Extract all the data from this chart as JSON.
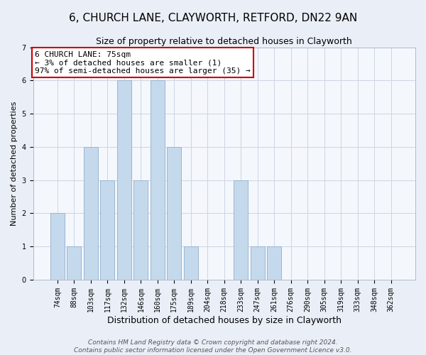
{
  "title1": "6, CHURCH LANE, CLAYWORTH, RETFORD, DN22 9AN",
  "title2": "Size of property relative to detached houses in Clayworth",
  "xlabel": "Distribution of detached houses by size in Clayworth",
  "ylabel": "Number of detached properties",
  "categories": [
    "74sqm",
    "88sqm",
    "103sqm",
    "117sqm",
    "132sqm",
    "146sqm",
    "160sqm",
    "175sqm",
    "189sqm",
    "204sqm",
    "218sqm",
    "233sqm",
    "247sqm",
    "261sqm",
    "276sqm",
    "290sqm",
    "305sqm",
    "319sqm",
    "333sqm",
    "348sqm",
    "362sqm"
  ],
  "values": [
    2,
    1,
    4,
    3,
    6,
    3,
    6,
    4,
    1,
    0,
    0,
    3,
    1,
    1,
    0,
    0,
    0,
    0,
    0,
    0,
    0
  ],
  "bar_color": "#c5d9ed",
  "bar_edge_color": "#9ab5cf",
  "annotation_box_text": "6 CHURCH LANE: 75sqm\n← 3% of detached houses are smaller (1)\n97% of semi-detached houses are larger (35) →",
  "annotation_box_color": "#ffffff",
  "annotation_box_edge_color": "#cc0000",
  "ylim": [
    0,
    7
  ],
  "yticks": [
    0,
    1,
    2,
    3,
    4,
    5,
    6,
    7
  ],
  "grid_color": "#ccd5e3",
  "background_color": "#eaeff7",
  "plot_bg_color": "#f4f7fc",
  "footer_line1": "Contains HM Land Registry data © Crown copyright and database right 2024.",
  "footer_line2": "Contains public sector information licensed under the Open Government Licence v3.0.",
  "title1_fontsize": 11,
  "title2_fontsize": 9,
  "xlabel_fontsize": 9,
  "ylabel_fontsize": 8,
  "annotation_fontsize": 8,
  "footer_fontsize": 6.5,
  "tick_fontsize": 7
}
